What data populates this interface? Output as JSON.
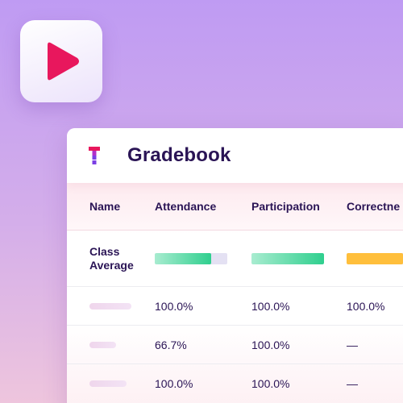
{
  "header": {
    "title": "Gradebook"
  },
  "icons": {
    "play": "play-icon",
    "logo": "gradebook-logo-icon"
  },
  "colors": {
    "play_accent": "#e8175d",
    "logo_accent": "#e8175d",
    "logo_secondary": "#7b3fe4",
    "attendance_fill": "#4fd9a0",
    "participation_fill": "#4fd9a0",
    "correctness_fill": "#ffbf3c",
    "bar_track": "#e4e1f3"
  },
  "table": {
    "columns": [
      "Name",
      "Attendance",
      "Participation",
      "Correctne"
    ],
    "class_average": {
      "name": "Class\nAverage",
      "attendance_fraction": 0.78,
      "participation_fraction": 1.0,
      "correctness_fraction": 0.78
    },
    "rows": [
      {
        "attendance": "100.0%",
        "participation": "100.0%",
        "correctness": "100.0%"
      },
      {
        "attendance": "66.7%",
        "participation": "100.0%",
        "correctness": "—"
      },
      {
        "attendance": "100.0%",
        "participation": "100.0%",
        "correctness": "—"
      }
    ]
  }
}
